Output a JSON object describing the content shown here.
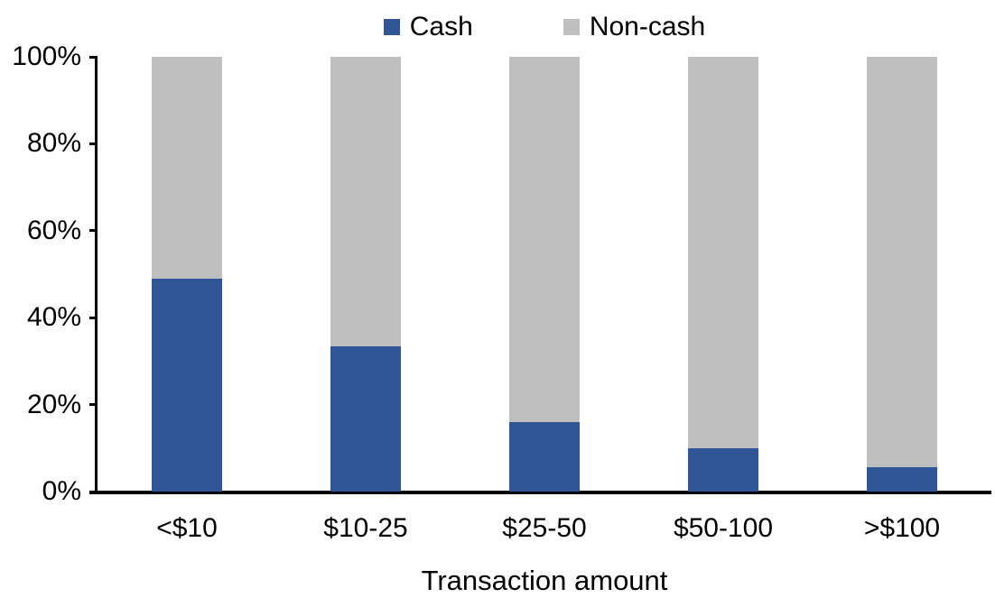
{
  "chart_data": {
    "type": "bar",
    "subtype": "stacked-100-percent",
    "title": "",
    "xlabel": "Transaction amount",
    "ylabel": "",
    "ylim": [
      0,
      100
    ],
    "grid": false,
    "legend_position": "top",
    "categories": [
      "<$10",
      "$10-25",
      "$25-50",
      "$50-100",
      ">$100"
    ],
    "series": [
      {
        "name": "Cash",
        "color": "#2F5597",
        "values": [
          49,
          33.5,
          16,
          10,
          5.5
        ]
      },
      {
        "name": "Non-cash",
        "color": "#BFBFBF",
        "values": [
          51,
          66.5,
          84,
          90,
          94.5
        ]
      }
    ],
    "y_ticks": [
      {
        "label": "0%",
        "value": 0
      },
      {
        "label": "20%",
        "value": 20
      },
      {
        "label": "40%",
        "value": 40
      },
      {
        "label": "60%",
        "value": 60
      },
      {
        "label": "80%",
        "value": 80
      },
      {
        "label": "100%",
        "value": 100
      }
    ]
  }
}
